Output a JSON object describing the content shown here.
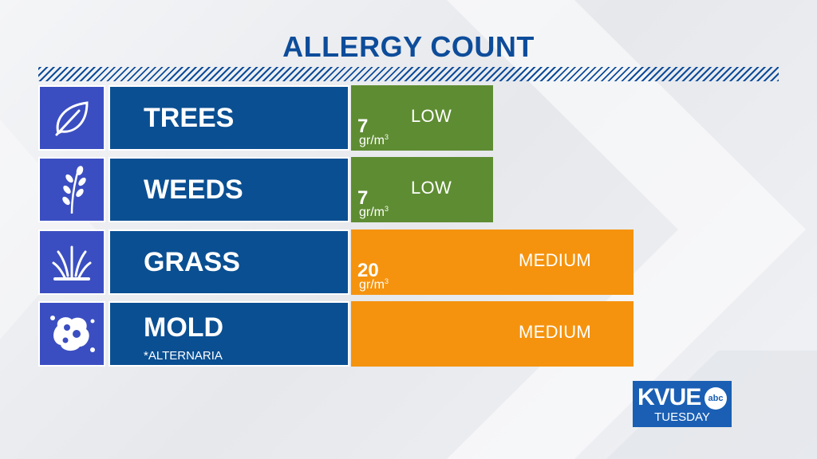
{
  "title": "ALLERGY COUNT",
  "colors": {
    "title": "#0d4c9a",
    "name_box": "#0a4f92",
    "icon_box": "#3b4ec1",
    "low": "#5e8c32",
    "medium": "#f5930e"
  },
  "rows": [
    {
      "icon": "leaf-icon",
      "name": "TREES",
      "subname": "",
      "count": "7",
      "unit": "gr/m",
      "unit_sup": "3",
      "level": "LOW"
    },
    {
      "icon": "weed-sprig-icon",
      "name": "WEEDS",
      "subname": "",
      "count": "7",
      "unit": "gr/m",
      "unit_sup": "3",
      "level": "LOW"
    },
    {
      "icon": "grass-tuft-icon",
      "name": "GRASS",
      "subname": "",
      "count": "20",
      "unit": "gr/m",
      "unit_sup": "3",
      "level": "MEDIUM"
    },
    {
      "icon": "mold-spore-icon",
      "name": "MOLD",
      "subname": "*ALTERNARIA",
      "count": "",
      "unit": "",
      "unit_sup": "",
      "level": "MEDIUM"
    }
  ],
  "logo": {
    "brand": "KVUE",
    "network": "abc",
    "day": "TUESDAY"
  }
}
